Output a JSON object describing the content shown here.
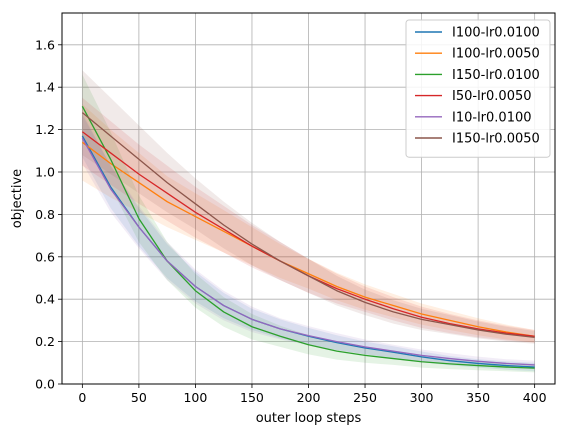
{
  "chart_data": {
    "type": "line",
    "xlabel": "outer loop steps",
    "ylabel": "objective",
    "xlim": [
      -18,
      418
    ],
    "ylim": [
      0.0,
      1.75
    ],
    "xticks": [
      0,
      50,
      100,
      150,
      200,
      250,
      300,
      350,
      400
    ],
    "yticks": [
      0.0,
      0.2,
      0.4,
      0.6,
      0.8,
      1.0,
      1.2,
      1.4,
      1.6
    ],
    "xtick_labels": [
      "0",
      "50",
      "100",
      "150",
      "200",
      "250",
      "300",
      "350",
      "400"
    ],
    "ytick_labels": [
      "0.0",
      "0.2",
      "0.4",
      "0.6",
      "0.8",
      "1.0",
      "1.2",
      "1.4",
      "1.6"
    ],
    "grid": true,
    "legend_position": "top-right",
    "x": [
      0,
      25,
      50,
      75,
      100,
      125,
      150,
      175,
      200,
      225,
      250,
      275,
      300,
      325,
      350,
      375,
      400
    ],
    "series": [
      {
        "name": "I100-lr0.0100",
        "color": "#1f77b4",
        "values": [
          1.17,
          0.93,
          0.74,
          0.58,
          0.46,
          0.37,
          0.305,
          0.26,
          0.225,
          0.195,
          0.17,
          0.15,
          0.128,
          0.11,
          0.097,
          0.087,
          0.08
        ],
        "band": [
          0.1,
          0.1,
          0.09,
          0.08,
          0.07,
          0.06,
          0.05,
          0.045,
          0.04,
          0.035,
          0.03,
          0.028,
          0.025,
          0.022,
          0.02,
          0.02,
          0.02
        ]
      },
      {
        "name": "I100-lr0.0050",
        "color": "#ff7f0e",
        "values": [
          1.14,
          1.04,
          0.95,
          0.86,
          0.79,
          0.72,
          0.65,
          0.58,
          0.52,
          0.46,
          0.41,
          0.37,
          0.33,
          0.3,
          0.27,
          0.245,
          0.225
        ],
        "band": [
          0.18,
          0.16,
          0.14,
          0.12,
          0.11,
          0.1,
          0.09,
          0.08,
          0.07,
          0.065,
          0.06,
          0.055,
          0.05,
          0.045,
          0.04,
          0.035,
          0.03
        ]
      },
      {
        "name": "I150-lr0.0100",
        "color": "#2ca02c",
        "values": [
          1.31,
          1.06,
          0.78,
          0.58,
          0.44,
          0.34,
          0.27,
          0.225,
          0.185,
          0.155,
          0.135,
          0.12,
          0.105,
          0.095,
          0.087,
          0.08,
          0.075
        ],
        "band": [
          0.15,
          0.13,
          0.11,
          0.09,
          0.08,
          0.07,
          0.06,
          0.05,
          0.045,
          0.04,
          0.035,
          0.03,
          0.028,
          0.025,
          0.022,
          0.02,
          0.02
        ]
      },
      {
        "name": "I50-lr0.0050",
        "color": "#d62728",
        "values": [
          1.19,
          1.09,
          0.99,
          0.9,
          0.81,
          0.73,
          0.65,
          0.58,
          0.51,
          0.45,
          0.4,
          0.355,
          0.315,
          0.285,
          0.26,
          0.24,
          0.225
        ],
        "band": [
          0.16,
          0.15,
          0.14,
          0.13,
          0.12,
          0.11,
          0.1,
          0.09,
          0.08,
          0.07,
          0.06,
          0.055,
          0.05,
          0.045,
          0.04,
          0.035,
          0.03
        ]
      },
      {
        "name": "I10-lr0.0100",
        "color": "#9467bd",
        "values": [
          1.16,
          0.92,
          0.74,
          0.58,
          0.46,
          0.37,
          0.305,
          0.26,
          0.228,
          0.2,
          0.175,
          0.155,
          0.135,
          0.12,
          0.107,
          0.097,
          0.09
        ],
        "band": [
          0.12,
          0.11,
          0.1,
          0.09,
          0.08,
          0.07,
          0.06,
          0.05,
          0.045,
          0.04,
          0.035,
          0.03,
          0.028,
          0.025,
          0.022,
          0.02,
          0.02
        ]
      },
      {
        "name": "I150-lr0.0050",
        "color": "#8c564b",
        "values": [
          1.28,
          1.17,
          1.06,
          0.95,
          0.85,
          0.75,
          0.66,
          0.58,
          0.51,
          0.44,
          0.385,
          0.34,
          0.305,
          0.28,
          0.255,
          0.235,
          0.22
        ],
        "band": [
          0.2,
          0.18,
          0.16,
          0.14,
          0.12,
          0.11,
          0.1,
          0.09,
          0.08,
          0.07,
          0.06,
          0.055,
          0.05,
          0.045,
          0.04,
          0.035,
          0.03
        ]
      }
    ]
  }
}
